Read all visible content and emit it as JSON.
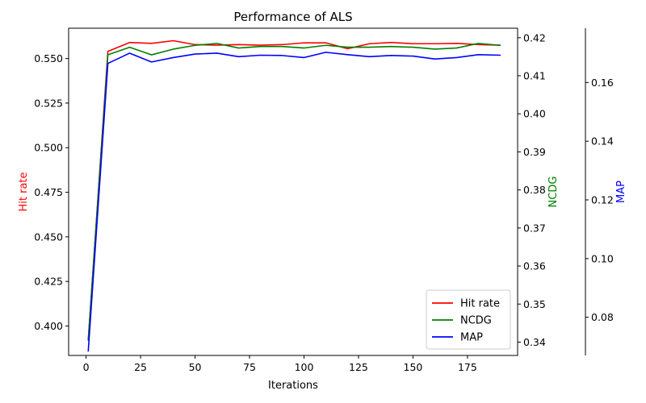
{
  "chart_data": {
    "type": "line",
    "title": "Performance of ALS",
    "xlabel": "Iterations",
    "xlim": [
      -8,
      198
    ],
    "x_ticks": [
      0,
      25,
      50,
      75,
      100,
      125,
      150,
      175
    ],
    "x": [
      1,
      10,
      20,
      30,
      40,
      50,
      60,
      70,
      80,
      90,
      100,
      110,
      120,
      130,
      140,
      150,
      160,
      170,
      180,
      190
    ],
    "axes": [
      {
        "name": "Hit rate",
        "label": "Hit rate",
        "color": "#ff0000",
        "position": "left",
        "ylim": [
          0.3835,
          0.567
        ],
        "ticks": [
          0.4,
          0.425,
          0.45,
          0.475,
          0.5,
          0.525,
          0.55
        ],
        "tick_format": 3
      },
      {
        "name": "NCDG",
        "label": "NCDG",
        "color": "#008000",
        "position": "right-inner",
        "ylim": [
          0.3365,
          0.4225
        ],
        "ticks": [
          0.34,
          0.35,
          0.36,
          0.37,
          0.38,
          0.39,
          0.4,
          0.41,
          0.42
        ],
        "tick_format": 2
      },
      {
        "name": "MAP",
        "label": "MAP",
        "color": "#0000ff",
        "position": "right-outer",
        "ylim": [
          0.067,
          0.1785
        ],
        "ticks": [
          0.08,
          0.1,
          0.12,
          0.14,
          0.16
        ],
        "tick_format": 2
      }
    ],
    "series": [
      {
        "name": "Hit rate",
        "axis": 0,
        "color": "#ff0000",
        "values": [
          0.392,
          0.554,
          0.559,
          0.5585,
          0.56,
          0.5578,
          0.5575,
          0.5578,
          0.5575,
          0.5578,
          0.5588,
          0.5588,
          0.5555,
          0.5583,
          0.559,
          0.5583,
          0.5583,
          0.5585,
          0.5578,
          0.5575
        ]
      },
      {
        "name": "NCDG",
        "axis": 1,
        "color": "#008000",
        "values": [
          0.3405,
          0.4155,
          0.4175,
          0.4155,
          0.417,
          0.418,
          0.4185,
          0.4173,
          0.4177,
          0.4177,
          0.4173,
          0.418,
          0.4175,
          0.4175,
          0.4177,
          0.4175,
          0.417,
          0.4173,
          0.4185,
          0.418
        ]
      },
      {
        "name": "MAP",
        "axis": 2,
        "color": "#0000ff",
        "values": [
          0.0685,
          0.1665,
          0.17,
          0.167,
          0.1685,
          0.1697,
          0.17,
          0.1688,
          0.1693,
          0.1692,
          0.1685,
          0.1703,
          0.1695,
          0.1688,
          0.1692,
          0.169,
          0.168,
          0.1685,
          0.1695,
          0.1693
        ]
      }
    ],
    "legend": {
      "placement": "lower-right",
      "entries": [
        "Hit rate",
        "NCDG",
        "MAP"
      ]
    },
    "grid": false
  }
}
